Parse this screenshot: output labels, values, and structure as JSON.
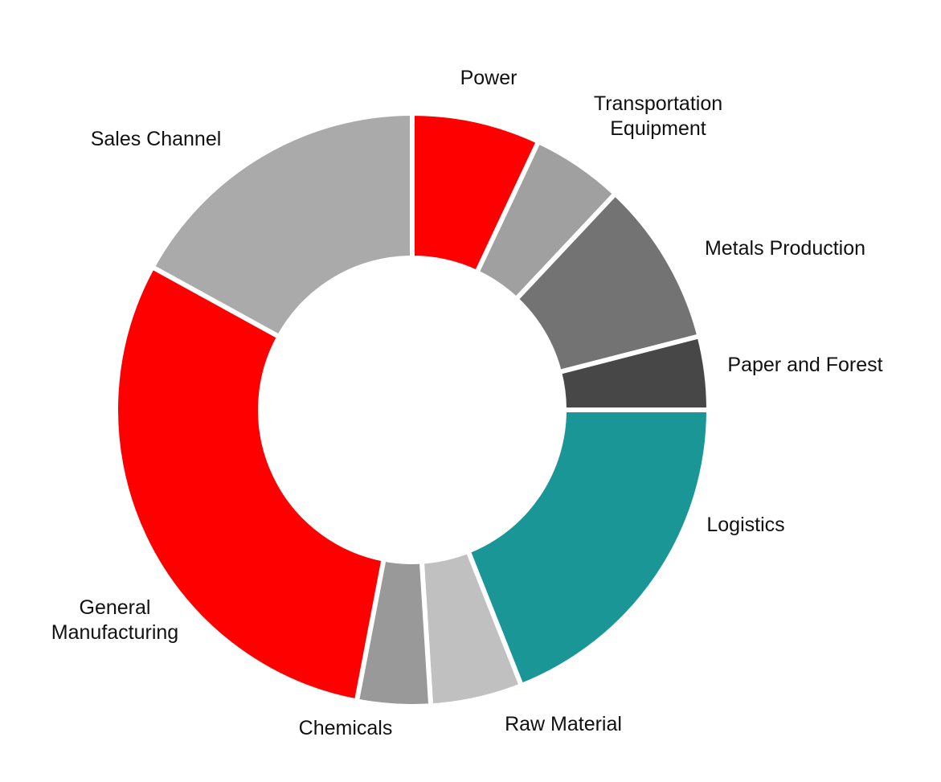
{
  "chart_data": {
    "type": "pie",
    "style": "donut",
    "title": "",
    "slices": [
      {
        "label": "Power",
        "lines": [
          "Power"
        ],
        "value": 7,
        "color": "#ff0000"
      },
      {
        "label": "Transportation Equipment",
        "lines": [
          "Transportation",
          "Equipment"
        ],
        "value": 5,
        "color": "#a0a0a0"
      },
      {
        "label": "Metals Production",
        "lines": [
          "Metals Production"
        ],
        "value": 9,
        "color": "#737373"
      },
      {
        "label": "Paper and Forest",
        "lines": [
          "Paper and Forest"
        ],
        "value": 4,
        "color": "#474747"
      },
      {
        "label": "Logistics",
        "lines": [
          "Logistics"
        ],
        "value": 19,
        "color": "#1a9696"
      },
      {
        "label": "Raw Material",
        "lines": [
          "Raw Material"
        ],
        "value": 5,
        "color": "#c0c0c0"
      },
      {
        "label": "Chemicals",
        "lines": [
          "Chemicals"
        ],
        "value": 4,
        "color": "#999999"
      },
      {
        "label": "General Manufacturing",
        "lines": [
          "General",
          "Manufacturing"
        ],
        "value": 30,
        "color": "#ff0000"
      },
      {
        "label": "Sales Channel",
        "lines": [
          "Sales Channel"
        ],
        "value": 17,
        "color": "#aaaaaa"
      }
    ],
    "units": "percent",
    "legend": "none"
  }
}
